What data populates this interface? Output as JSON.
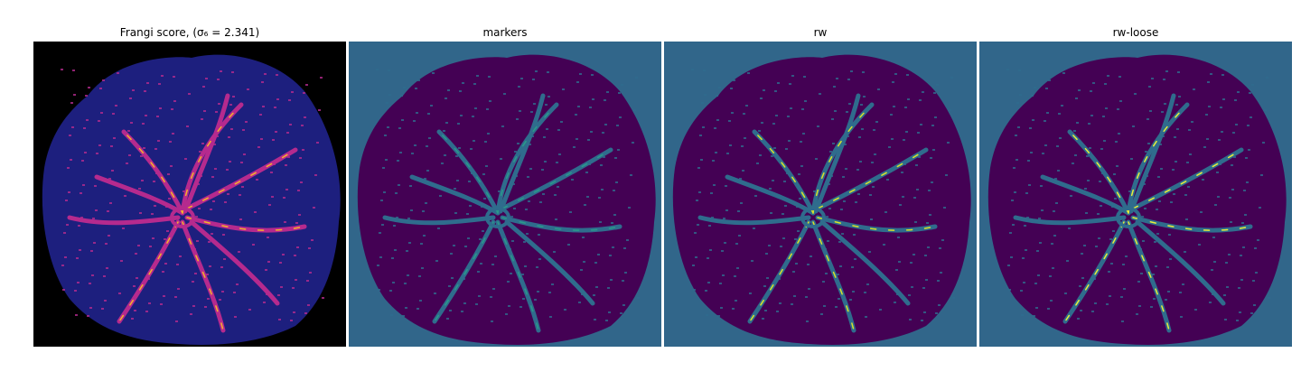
{
  "figure": {
    "panels": [
      {
        "title": "Frangi score, (σ₆ = 2.341)",
        "background": "#000000",
        "fill": "#1d1f7e",
        "vessel": "#b52a8e",
        "highlight": "#f5b32a",
        "icon": "vessel-heatmap"
      },
      {
        "title": "markers",
        "background": "#31668a",
        "fill": "#440154",
        "vessel": "#2f6c8d",
        "highlight": "#2a9b8a",
        "icon": "vessel-marker-map"
      },
      {
        "title": "rw",
        "background": "#31668a",
        "fill": "#440154",
        "vessel": "#2f6c8d",
        "highlight": "#d9e32a",
        "icon": "vessel-segmentation-map"
      },
      {
        "title": "rw-loose",
        "background": "#31668a",
        "fill": "#440154",
        "vessel": "#2f6c8d",
        "highlight": "#e8ef3a",
        "icon": "vessel-segmentation-map"
      }
    ]
  }
}
